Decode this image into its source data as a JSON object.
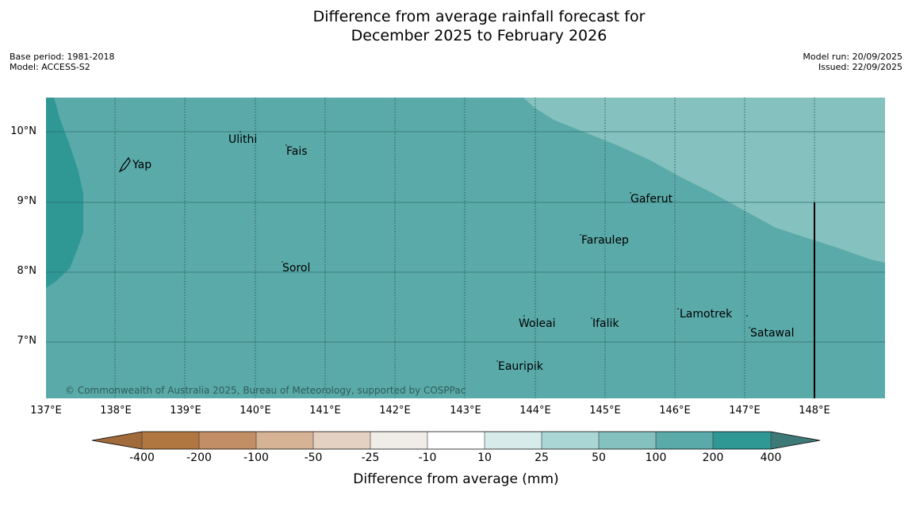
{
  "title": {
    "line1": "Difference from average rainfall forecast for",
    "line2": "December 2025 to February 2026"
  },
  "meta": {
    "base_period": "Base period: 1981-2018",
    "model": "Model: ACCESS-S2",
    "model_run": "Model run: 20/09/2025",
    "issued": "Issued: 22/09/2025"
  },
  "map": {
    "places": [
      "Ulithi",
      "Fais",
      "Yap",
      "Gaferut",
      "Faraulep",
      "Sorol",
      "Woleai",
      "Ifalik",
      "Lamotrek",
      "Satawal",
      "Eauripik"
    ],
    "copyright": "© Commonwealth of Australia 2025, Bureau of Meteorology, supported by COSPPac",
    "lat_labels": [
      "10°N",
      "9°N",
      "8°N",
      "7°N"
    ],
    "lon_labels": [
      "137°E",
      "138°E",
      "139°E",
      "140°E",
      "141°E",
      "142°E",
      "143°E",
      "144°E",
      "145°E",
      "146°E",
      "147°E",
      "148°E"
    ]
  },
  "colorbar": {
    "tick_labels": [
      "-400",
      "-200",
      "-100",
      "-50",
      "-25",
      "-10",
      "10",
      "25",
      "50",
      "100",
      "200",
      "400"
    ],
    "colors": [
      "#a06a3a",
      "#b07840",
      "#c28e66",
      "#d5b394",
      "#e5d1c1",
      "#f0ede8",
      "#ffffff",
      "#d6ebea",
      "#abd6d6",
      "#84c1bf",
      "#5aaaa9",
      "#2f9895",
      "#3d7a77"
    ],
    "title": "Difference from average (mm)"
  }
}
